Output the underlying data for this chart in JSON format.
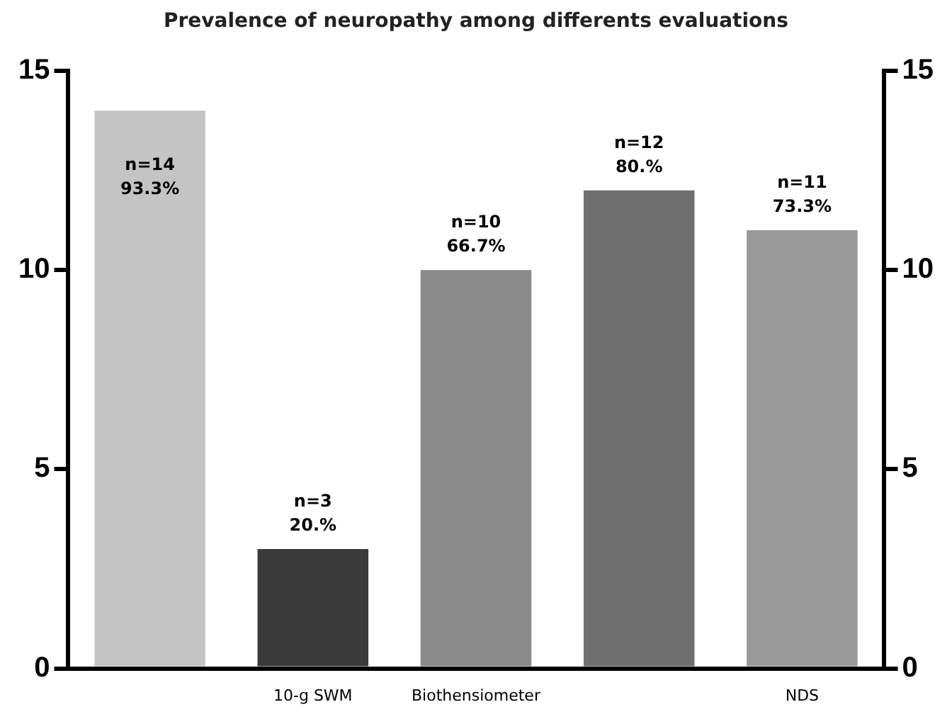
{
  "chart_data": {
    "type": "bar",
    "title": "Prevalence of neuropathy among differents evaluations",
    "categories": [
      null,
      "10-g SWM",
      "Biothensiometer",
      null,
      "NDS"
    ],
    "values": [
      14,
      3,
      10,
      12,
      11
    ],
    "colors": [
      "#c4c4c4",
      "#3a3a3a",
      "#8a8a8a",
      "#6e6e6e",
      "#9a9a9a"
    ],
    "value_labels": [
      "n=14\n93.3%",
      "n=3\n20.%",
      "n=10\n66.7%",
      "n=12\n80.%",
      "n=11\n73.3%"
    ],
    "ylim": [
      0,
      15
    ],
    "yticks": [
      0,
      5,
      10,
      15
    ],
    "y2lim": [
      0,
      15
    ],
    "y2ticks": [
      0,
      5,
      10,
      15
    ],
    "grid": false,
    "legend": false
  }
}
